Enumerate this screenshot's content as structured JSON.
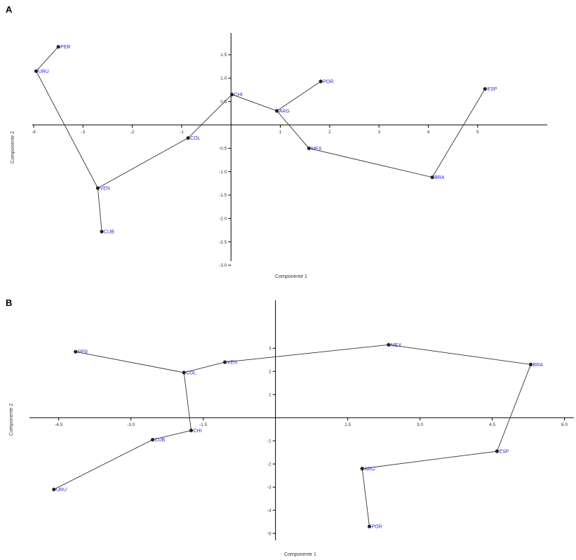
{
  "chart_data": [
    {
      "panel": "A",
      "type": "scatter",
      "xlabel": "Componente 1",
      "ylabel": "Componente 2",
      "xlim": [
        -4,
        6
      ],
      "ylim": [
        -3,
        2
      ],
      "x_ticks": [
        -4,
        -3,
        -2,
        -1,
        1,
        2,
        3,
        4,
        5
      ],
      "y_ticks": [
        1.5,
        1.0,
        0.5,
        -0.5,
        -1.0,
        -1.5,
        -2.0,
        -2.5,
        -3.0
      ],
      "x_tick_labels": [
        "-4",
        "-3",
        "-2",
        "-1",
        "1",
        "2",
        "3",
        "4",
        "5"
      ],
      "y_tick_labels": [
        "1.5",
        "1.0",
        "0.5",
        "-0.5",
        "-1.0",
        "-1.5",
        "-2.0",
        "-2.5",
        "-3.0"
      ],
      "points": [
        {
          "label": "PER",
          "x": -3.5,
          "y": 1.67
        },
        {
          "label": "URU",
          "x": -3.95,
          "y": 1.15
        },
        {
          "label": "VEN",
          "x": -2.7,
          "y": -1.35
        },
        {
          "label": "CUB",
          "x": -2.62,
          "y": -2.28
        },
        {
          "label": "COL",
          "x": -0.87,
          "y": -0.28
        },
        {
          "label": "CHI",
          "x": 0.02,
          "y": 0.65
        },
        {
          "label": "ARG",
          "x": 0.93,
          "y": 0.3
        },
        {
          "label": "POR",
          "x": 1.82,
          "y": 0.93
        },
        {
          "label": "MEX",
          "x": 1.58,
          "y": -0.5
        },
        {
          "label": "BRA",
          "x": 4.08,
          "y": -1.12
        },
        {
          "label": "ESP",
          "x": 5.15,
          "y": 0.77
        }
      ],
      "path": [
        "PER",
        "URU",
        "VEN",
        "CUB"
      ],
      "path2": [
        "VEN",
        "COL",
        "CHI",
        "ARG",
        "MEX",
        "BRA",
        "ESP"
      ],
      "path3": [
        "ARG",
        "POR"
      ]
    },
    {
      "panel": "B",
      "type": "scatter",
      "xlabel": "Componente 1",
      "ylabel": "Componente 2",
      "xlim": [
        -5.0,
        6.0
      ],
      "ylim": [
        -5,
        4
      ],
      "x_ticks": [
        -4.5,
        -3.0,
        -1.5,
        1.5,
        3.0,
        4.5,
        6.0
      ],
      "y_ticks": [
        3,
        2,
        1,
        -1,
        -2,
        -3,
        -4,
        -5
      ],
      "x_tick_labels": [
        "-4.5",
        "-3.0",
        "-1.5",
        "1.5",
        "3.0",
        "4.5",
        "6.0"
      ],
      "y_tick_labels": [
        "3",
        "2",
        "1",
        "-1",
        "-2",
        "-3",
        "-4",
        "-5"
      ],
      "points": [
        {
          "label": "PER",
          "x": -4.15,
          "y": 2.85
        },
        {
          "label": "COL",
          "x": -1.9,
          "y": 1.95
        },
        {
          "label": "VEN",
          "x": -1.05,
          "y": 2.4
        },
        {
          "label": "MEX",
          "x": 2.35,
          "y": 3.15
        },
        {
          "label": "BRA",
          "x": 5.3,
          "y": 2.3
        },
        {
          "label": "CHI",
          "x": -1.75,
          "y": -0.55
        },
        {
          "label": "CUB",
          "x": -2.55,
          "y": -0.95
        },
        {
          "label": "URU",
          "x": -4.6,
          "y": -3.1
        },
        {
          "label": "ESP",
          "x": 4.6,
          "y": -1.45
        },
        {
          "label": "ARG",
          "x": 1.8,
          "y": -2.2
        },
        {
          "label": "POR",
          "x": 1.95,
          "y": -4.7
        }
      ],
      "path": [
        "PER",
        "COL",
        "VEN",
        "MEX",
        "BRA",
        "ESP",
        "ARG",
        "POR"
      ],
      "path2": [
        "COL",
        "CHI",
        "CUB",
        "URU"
      ],
      "path3": []
    }
  ]
}
